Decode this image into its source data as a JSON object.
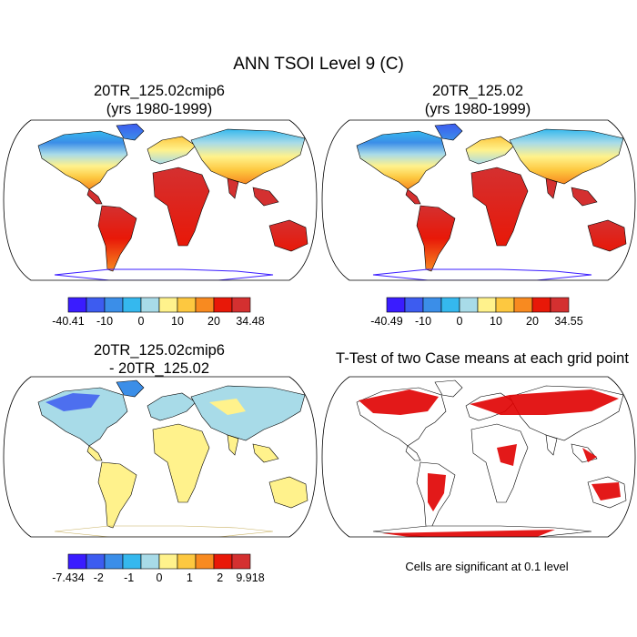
{
  "title": "ANN TSOI Level 9 (C)",
  "panels": [
    {
      "line1": "20TR_125.02cmip6",
      "line2": "(yrs 1980-1999)",
      "colorbar": {
        "labels": [
          "-40.41",
          "-10",
          "0",
          "10",
          "20",
          "34.48"
        ]
      }
    },
    {
      "line1": "20TR_125.02",
      "line2": "(yrs 1980-1999)",
      "colorbar": {
        "labels": [
          "-40.49",
          "-10",
          "0",
          "10",
          "20",
          "34.55"
        ]
      }
    },
    {
      "line1": "20TR_125.02cmip6",
      "line2": "- 20TR_125.02",
      "colorbar": {
        "labels": [
          "-7.434",
          "-2",
          "-1",
          "0",
          "1",
          "2",
          "9.918"
        ]
      }
    },
    {
      "line1": "T-Test of two Case means at each grid point",
      "line2": ""
    }
  ],
  "note": "Cells are significant at 0.1 level",
  "colors": {
    "abs_scale": [
      "#3a1cff",
      "#3d5cf0",
      "#3b8ee8",
      "#35b8ee",
      "#a8dbe8",
      "#fff28c",
      "#fdc840",
      "#f88a20",
      "#e81808",
      "#d43030"
    ],
    "diff_scale": [
      "#3a1cff",
      "#3d5cf0",
      "#3b8ee8",
      "#35b8ee",
      "#a8dbe8",
      "#fff28c",
      "#fdc840",
      "#f88a20",
      "#e81808",
      "#d43030"
    ],
    "significant": "#e00000"
  }
}
